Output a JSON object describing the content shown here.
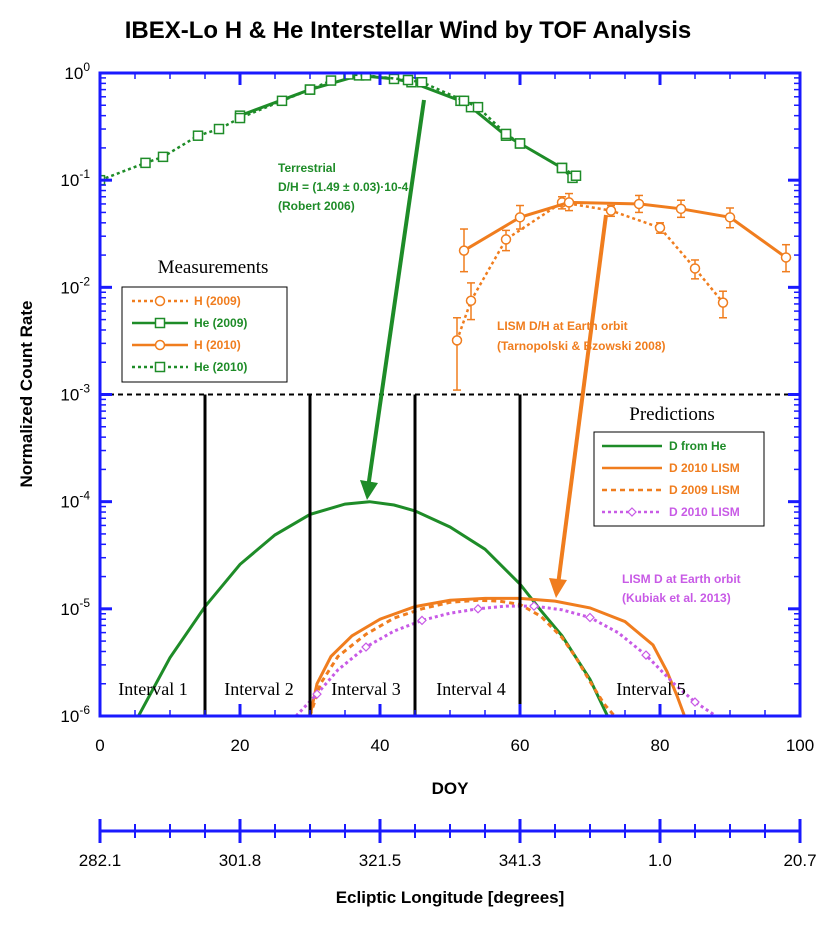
{
  "colors": {
    "axis": "#1a1aff",
    "green": "#1e8c28",
    "orange": "#f07d1e",
    "purple": "#c85ae6",
    "black": "#000000"
  },
  "chart_data": {
    "type": "line",
    "title": "IBEX-Lo  H & He Interstellar Wind by TOF Analysis",
    "xlabel": "DOY",
    "ylabel": "Normalized Count Rate",
    "xlim": [
      0,
      100
    ],
    "ylim": [
      1e-06,
      1
    ],
    "yscale": "log",
    "x_ticks": [
      "0",
      "20",
      "40",
      "60",
      "80",
      "100"
    ],
    "y_ticks": [
      {
        "base": "10",
        "exp": "0"
      },
      {
        "base": "10",
        "exp": "-1"
      },
      {
        "base": "10",
        "exp": "-2"
      },
      {
        "base": "10",
        "exp": "-3"
      },
      {
        "base": "10",
        "exp": "-4"
      },
      {
        "base": "10",
        "exp": "-5"
      },
      {
        "base": "10",
        "exp": "-6"
      }
    ],
    "secondary_axis": {
      "label": "Ecliptic Longitude [degrees]",
      "ticks": [
        "282.1",
        "301.8",
        "321.5",
        "341.3",
        "1.0",
        "20.7"
      ]
    },
    "threshold_line": 0.001,
    "interval_boundaries": [
      15,
      30,
      45,
      60
    ],
    "intervals": [
      "Interval 1",
      "Interval 2",
      "Interval 3",
      "Interval 4",
      "Interval 5"
    ],
    "measurements": [
      {
        "name": "H (2009)",
        "color": "orange",
        "style": "dotted",
        "marker": "circle",
        "x": [
          51,
          53,
          58,
          66,
          73,
          80,
          85,
          89
        ],
        "y": [
          0.0032,
          0.0075,
          0.028,
          0.062,
          0.052,
          0.036,
          0.015,
          0.0072
        ],
        "err_hi": [
          0.0052,
          0.011,
          0.034,
          0.07,
          0.058,
          0.04,
          0.018,
          0.0092
        ],
        "err_lo": [
          0.0011,
          0.005,
          0.022,
          0.054,
          0.046,
          0.032,
          0.012,
          0.0052
        ]
      },
      {
        "name": "He (2009)",
        "color": "green",
        "style": "solid",
        "marker": "square",
        "x": [
          20,
          30,
          37,
          42,
          44.5,
          51.5,
          53,
          58,
          60,
          66,
          67.5
        ],
        "y": [
          0.4,
          0.7,
          0.95,
          0.88,
          0.82,
          0.55,
          0.48,
          0.26,
          0.22,
          0.13,
          0.105
        ],
        "err_hi": [],
        "err_lo": []
      },
      {
        "name": "H (2010)",
        "color": "orange",
        "style": "solid",
        "marker": "circle",
        "x": [
          52,
          60,
          67,
          77,
          83,
          90,
          98
        ],
        "y": [
          0.022,
          0.045,
          0.062,
          0.06,
          0.054,
          0.045,
          0.019
        ],
        "err_hi": [
          0.035,
          0.058,
          0.075,
          0.072,
          0.065,
          0.055,
          0.025
        ],
        "err_lo": [
          0.014,
          0.035,
          0.052,
          0.05,
          0.045,
          0.036,
          0.014
        ]
      },
      {
        "name": "He (2010)",
        "color": "green",
        "style": "dotted",
        "marker": "square",
        "x": [
          0,
          6.5,
          9,
          14,
          17,
          20,
          26,
          30,
          33
        ],
        "y": [
          0.1,
          0.145,
          0.165,
          0.26,
          0.3,
          0.38,
          0.55,
          0.7,
          0.85
        ],
        "err_hi": [],
        "err_lo": []
      },
      {
        "name": "He (2010) upper",
        "color": "green",
        "style": "dotted",
        "marker": "square",
        "x": [
          35.5,
          38,
          44,
          46,
          52,
          54,
          58,
          60,
          66,
          68
        ],
        "y": [
          0.97,
          0.95,
          0.86,
          0.82,
          0.55,
          0.48,
          0.27,
          0.22,
          0.13,
          0.11
        ],
        "err_hi": [],
        "err_lo": []
      }
    ],
    "predictions": [
      {
        "name": "D from He",
        "color": "green",
        "style": "solid",
        "x": [
          5.5,
          10,
          15,
          20,
          25,
          30,
          35,
          38.5,
          42,
          45,
          50,
          55,
          60,
          63,
          66,
          70,
          72.5
        ],
        "y": [
          1e-06,
          3.5e-06,
          1.05e-05,
          2.6e-05,
          4.9e-05,
          7.6e-05,
          9.5e-05,
          0.0001,
          9.3e-05,
          8.2e-05,
          5.8e-05,
          3.6e-05,
          1.7e-05,
          9.6e-06,
          5.6e-06,
          2.2e-06,
          1e-06
        ]
      },
      {
        "name": "D 2010 LISM",
        "color": "orange",
        "style": "solid",
        "x": [
          30,
          31,
          33,
          36,
          40,
          45,
          50,
          55,
          60,
          65,
          70,
          75,
          79,
          81,
          82.5,
          83.5
        ],
        "y": [
          1e-06,
          2e-06,
          3.6e-06,
          5.6e-06,
          8e-06,
          1.05e-05,
          1.2e-05,
          1.25e-05,
          1.25e-05,
          1.18e-05,
          1.02e-05,
          7.6e-06,
          4.6e-06,
          2.6e-06,
          1.5e-06,
          1e-06
        ]
      },
      {
        "name": "D 2009 LISM",
        "color": "orange",
        "style": "dashed",
        "x": [
          30,
          31.5,
          34,
          38,
          42,
          46,
          50,
          54,
          57,
          60,
          63,
          66,
          68,
          70,
          72,
          73.5
        ],
        "y": [
          1e-06,
          2e-06,
          3.6e-06,
          5.8e-06,
          8.2e-06,
          1e-05,
          1.15e-05,
          1.2e-05,
          1.18e-05,
          1.1e-05,
          8.5e-06,
          5.4e-06,
          3.5e-06,
          2.1e-06,
          1.3e-06,
          1e-06
        ]
      },
      {
        "name": "D 2010 LISM",
        "color": "purple",
        "style": "dotted",
        "marker": "diamond",
        "x": [
          28,
          31,
          34,
          38,
          42,
          46,
          50,
          54,
          58,
          62,
          66,
          70,
          74,
          78,
          82,
          85,
          88
        ],
        "y": [
          1e-06,
          1.6e-06,
          2.7e-06,
          4.4e-06,
          6.2e-06,
          7.8e-06,
          9.1e-06,
          1e-05,
          1.06e-05,
          1.06e-05,
          9.8e-06,
          8.3e-06,
          6e-06,
          3.7e-06,
          2e-06,
          1.35e-06,
          1e-06
        ]
      }
    ],
    "legend_measurements": {
      "title": "Measurements",
      "entries": [
        "H (2009)",
        "He (2009)",
        "H (2010)",
        "He (2010)"
      ]
    },
    "legend_predictions": {
      "title": "Predictions",
      "entries": [
        "D from He",
        "D 2010 LISM",
        "D 2009 LISM",
        "D 2010 LISM"
      ]
    },
    "annotations": {
      "terrestrial": [
        "Terrestrial",
        "D/H = (1.49 ± 0.03)·10-4",
        "(Robert 2006)"
      ],
      "lism_dh": [
        "LISM D/H at Earth orbit",
        "(Tarnopolski & Bzowski 2008)"
      ],
      "lism_d": [
        "LISM D at Earth orbit",
        "(Kubiak et al. 2013)"
      ]
    }
  }
}
